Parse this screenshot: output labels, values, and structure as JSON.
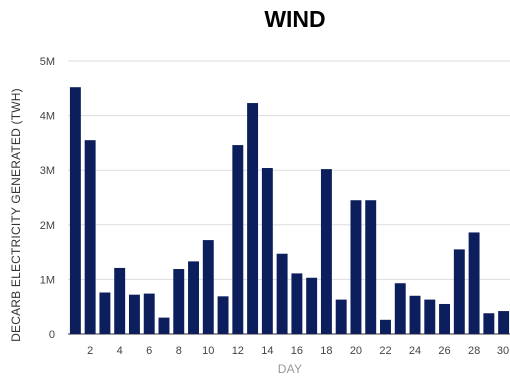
{
  "chart_data": {
    "type": "bar",
    "title": "WIND",
    "xlabel": "DAY",
    "ylabel": "DECARB ELECTRICITY GENERATED (TWH)",
    "categories": [
      1,
      2,
      3,
      4,
      5,
      6,
      7,
      8,
      9,
      10,
      11,
      12,
      13,
      14,
      15,
      16,
      17,
      18,
      19,
      20,
      21,
      22,
      23,
      24,
      25,
      26,
      27,
      28,
      29,
      30
    ],
    "x_tick_labels": [
      "2",
      "4",
      "6",
      "8",
      "10",
      "12",
      "14",
      "16",
      "18",
      "20",
      "22",
      "24",
      "26",
      "28",
      "30"
    ],
    "values": [
      4520000,
      3550000,
      760000,
      1210000,
      720000,
      740000,
      300000,
      1190000,
      1330000,
      1720000,
      690000,
      3460000,
      4230000,
      3040000,
      1470000,
      1110000,
      1030000,
      3020000,
      630000,
      2450000,
      2450000,
      260000,
      930000,
      700000,
      630000,
      550000,
      1550000,
      1860000,
      380000,
      420000
    ],
    "y_ticks": [
      0,
      1000000,
      2000000,
      3000000,
      4000000,
      5000000
    ],
    "y_tick_labels": [
      "0",
      "1M",
      "2M",
      "3M",
      "4M",
      "5M"
    ],
    "ylim": [
      0,
      5000000
    ],
    "grid": true,
    "bar_color": "#0c1f5c"
  }
}
